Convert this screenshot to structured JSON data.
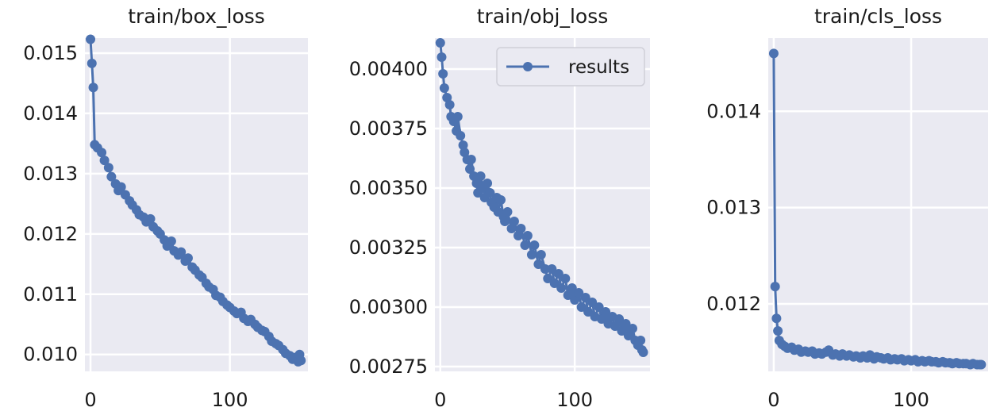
{
  "chart_data": [
    {
      "type": "line",
      "title": "train/box_loss",
      "xlabel": "",
      "ylabel": "",
      "xlim": [
        -4,
        156
      ],
      "ylim": [
        0.00972,
        0.01525
      ],
      "xticks": [
        0,
        100
      ],
      "xtick_labels": [
        "0",
        "100"
      ],
      "yticks": [
        0.01,
        0.011,
        0.012,
        0.013,
        0.014,
        0.015
      ],
      "ytick_labels": [
        "0.010",
        "0.011",
        "0.012",
        "0.013",
        "0.014",
        "0.015"
      ],
      "grid": true,
      "color": "#4c72b0",
      "series": [
        {
          "x": [
            0,
            1,
            2,
            3,
            5,
            8,
            10,
            13,
            15,
            18,
            20,
            22,
            25,
            28,
            30,
            33,
            35,
            38,
            40,
            43,
            45,
            48,
            50,
            53,
            55,
            58,
            60,
            63,
            65,
            68,
            70,
            73,
            75,
            78,
            80,
            83,
            85,
            88,
            90,
            93,
            95,
            98,
            100,
            103,
            105,
            108,
            110,
            113,
            115,
            118,
            120,
            123,
            125,
            128,
            130,
            133,
            135,
            138,
            140,
            143,
            145,
            147,
            149,
            150,
            151
          ],
          "values": [
            0.01523,
            0.01483,
            0.01443,
            0.01348,
            0.01343,
            0.01335,
            0.01322,
            0.0131,
            0.01295,
            0.01283,
            0.01272,
            0.01278,
            0.01265,
            0.01255,
            0.01248,
            0.0124,
            0.01232,
            0.01228,
            0.0122,
            0.01225,
            0.01212,
            0.01205,
            0.012,
            0.0119,
            0.0118,
            0.01188,
            0.01172,
            0.01165,
            0.0117,
            0.01155,
            0.0116,
            0.01145,
            0.0114,
            0.01132,
            0.01128,
            0.01118,
            0.01112,
            0.01108,
            0.01098,
            0.01095,
            0.01088,
            0.01082,
            0.01078,
            0.01072,
            0.01068,
            0.0107,
            0.0106,
            0.01055,
            0.01058,
            0.0105,
            0.01045,
            0.0104,
            0.01038,
            0.0103,
            0.01022,
            0.01018,
            0.01015,
            0.01008,
            0.01002,
            0.00998,
            0.00992,
            0.00995,
            0.00988,
            0.01,
            0.0099
          ]
        }
      ]
    },
    {
      "type": "line",
      "title": "train/obj_loss",
      "xlabel": "",
      "ylabel": "",
      "xlim": [
        -4,
        156
      ],
      "ylim": [
        0.00273,
        0.00413
      ],
      "xticks": [
        0,
        100
      ],
      "xtick_labels": [
        "0",
        "100"
      ],
      "yticks": [
        0.00275,
        0.003,
        0.00325,
        0.0035,
        0.00375,
        0.004
      ],
      "ytick_labels": [
        "0.00275",
        "0.00300",
        "0.00325",
        "0.00350",
        "0.00375",
        "0.00400"
      ],
      "grid": true,
      "color": "#4c72b0",
      "legend": {
        "labels": [
          "results"
        ],
        "loc": "upper right"
      },
      "series": [
        {
          "name": "results",
          "x": [
            0,
            1,
            2,
            3,
            5,
            7,
            8,
            10,
            12,
            13,
            15,
            17,
            18,
            20,
            22,
            23,
            25,
            27,
            28,
            30,
            32,
            33,
            35,
            37,
            38,
            40,
            42,
            43,
            45,
            47,
            48,
            50,
            53,
            55,
            58,
            60,
            63,
            65,
            68,
            70,
            73,
            75,
            78,
            80,
            83,
            85,
            88,
            90,
            93,
            95,
            98,
            100,
            103,
            105,
            108,
            110,
            113,
            115,
            118,
            120,
            123,
            125,
            128,
            130,
            133,
            135,
            138,
            140,
            143,
            145,
            147,
            149,
            150,
            151
          ],
          "values": [
            0.00411,
            0.00405,
            0.00398,
            0.00392,
            0.00388,
            0.00385,
            0.0038,
            0.00378,
            0.00374,
            0.0038,
            0.00372,
            0.00368,
            0.00365,
            0.00362,
            0.00358,
            0.00362,
            0.00355,
            0.00352,
            0.00348,
            0.00355,
            0.0035,
            0.00346,
            0.00352,
            0.00348,
            0.00344,
            0.00342,
            0.00346,
            0.0034,
            0.00345,
            0.00338,
            0.00336,
            0.0034,
            0.00333,
            0.00336,
            0.0033,
            0.00333,
            0.00326,
            0.0033,
            0.00322,
            0.00326,
            0.00318,
            0.00322,
            0.00316,
            0.00312,
            0.00316,
            0.0031,
            0.00314,
            0.00308,
            0.00312,
            0.00305,
            0.00308,
            0.00303,
            0.00306,
            0.003,
            0.00304,
            0.00298,
            0.00302,
            0.00296,
            0.003,
            0.00295,
            0.00298,
            0.00293,
            0.00296,
            0.00292,
            0.00295,
            0.0029,
            0.00293,
            0.00288,
            0.00291,
            0.00286,
            0.00284,
            0.00286,
            0.00282,
            0.00281
          ]
        }
      ]
    },
    {
      "type": "line",
      "title": "train/cls_loss",
      "xlabel": "",
      "ylabel": "",
      "xlim": [
        -4,
        156
      ],
      "ylim": [
        0.0113,
        0.01476
      ],
      "xticks": [
        0,
        100
      ],
      "xtick_labels": [
        "0",
        "100"
      ],
      "yticks": [
        0.012,
        0.013,
        0.014
      ],
      "ytick_labels": [
        "0.012",
        "0.013",
        "0.014"
      ],
      "grid": true,
      "color": "#4c72b0",
      "series": [
        {
          "x": [
            0,
            1,
            2,
            3,
            4,
            6,
            8,
            10,
            13,
            15,
            18,
            20,
            23,
            25,
            28,
            30,
            33,
            35,
            38,
            40,
            43,
            45,
            48,
            50,
            53,
            55,
            58,
            60,
            63,
            65,
            68,
            70,
            73,
            75,
            78,
            80,
            83,
            85,
            88,
            90,
            93,
            95,
            98,
            100,
            103,
            105,
            108,
            110,
            113,
            115,
            118,
            120,
            123,
            125,
            128,
            130,
            133,
            135,
            138,
            140,
            143,
            145,
            148,
            150,
            151
          ],
          "values": [
            0.0146,
            0.01218,
            0.01185,
            0.01172,
            0.01162,
            0.01158,
            0.01156,
            0.01154,
            0.01155,
            0.01152,
            0.01153,
            0.0115,
            0.01151,
            0.0115,
            0.01151,
            0.01148,
            0.01149,
            0.01148,
            0.0115,
            0.01152,
            0.01147,
            0.01148,
            0.01146,
            0.01148,
            0.01146,
            0.01147,
            0.01145,
            0.01146,
            0.01144,
            0.01146,
            0.01144,
            0.01147,
            0.01143,
            0.01145,
            0.01144,
            0.01143,
            0.01144,
            0.01142,
            0.01143,
            0.01142,
            0.01143,
            0.01141,
            0.01142,
            0.01141,
            0.01142,
            0.0114,
            0.01141,
            0.0114,
            0.01141,
            0.0114,
            0.0114,
            0.01139,
            0.0114,
            0.01139,
            0.01139,
            0.01138,
            0.01139,
            0.01138,
            0.01138,
            0.01138,
            0.01137,
            0.01138,
            0.01137,
            0.01137,
            0.01137
          ]
        }
      ]
    }
  ]
}
